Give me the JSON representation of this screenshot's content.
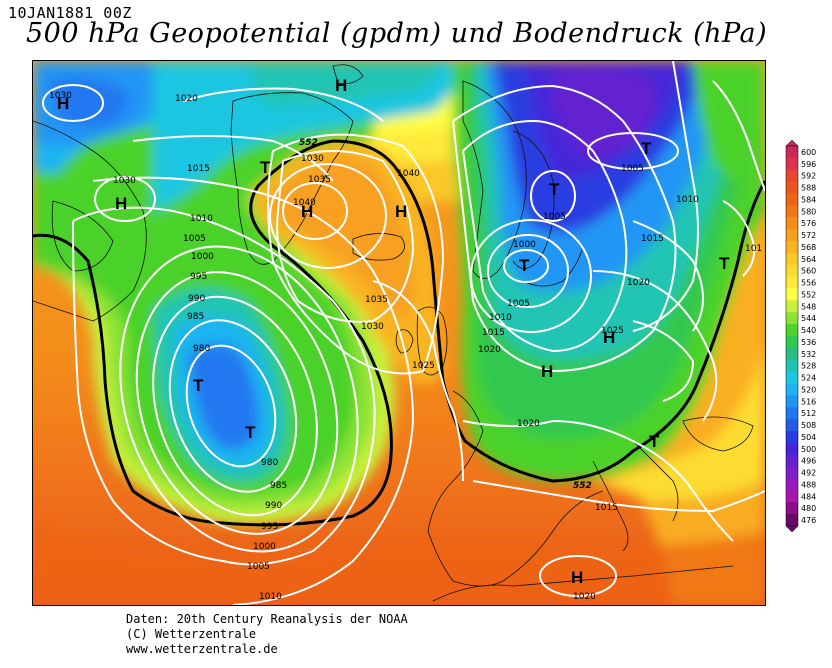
{
  "header": {
    "date": "10JAN1881 00Z",
    "title": "500 hPa Geopotential (gpdm) und Bodendruck (hPa)"
  },
  "legend": {
    "values": [
      "600",
      "596",
      "592",
      "588",
      "584",
      "580",
      "576",
      "572",
      "568",
      "564",
      "560",
      "556",
      "552",
      "548",
      "544",
      "540",
      "536",
      "532",
      "528",
      "524",
      "520",
      "516",
      "512",
      "508",
      "504",
      "500",
      "496",
      "492",
      "488",
      "484",
      "480",
      "476"
    ],
    "colors": [
      "#c8285a",
      "#dc3250",
      "#e64632",
      "#ea5522",
      "#ee6414",
      "#f07816",
      "#f48c1a",
      "#f7a020",
      "#f9b424",
      "#fbc82a",
      "#fddc30",
      "#ffe93a",
      "#ffff44",
      "#c8f03c",
      "#8ce234",
      "#4cd22c",
      "#30c850",
      "#28be82",
      "#20c4b4",
      "#1ec6e0",
      "#1eb4f2",
      "#2096f4",
      "#2278f0",
      "#285ae8",
      "#2a3ce0",
      "#4426d8",
      "#6422d0",
      "#7e1ec8",
      "#961abc",
      "#a818ac",
      "#8a1084",
      "#6a0a68"
    ]
  },
  "map": {
    "pressure_centers": [
      {
        "label": "H"
      },
      {
        "label": "H"
      },
      {
        "label": "T"
      },
      {
        "label": "H"
      },
      {
        "label": "H"
      },
      {
        "label": "H"
      },
      {
        "label": "T"
      },
      {
        "label": "T"
      },
      {
        "label": "T"
      },
      {
        "label": "T"
      },
      {
        "label": "T"
      },
      {
        "label": "H"
      },
      {
        "label": "H"
      },
      {
        "label": "T"
      },
      {
        "label": "T"
      },
      {
        "label": "H"
      }
    ],
    "isobar_labels": [
      {
        "text": "1030"
      },
      {
        "text": "1020"
      },
      {
        "text": "1015"
      },
      {
        "text": "1030"
      },
      {
        "text": "1010"
      },
      {
        "text": "1005"
      },
      {
        "text": "1000"
      },
      {
        "text": "995"
      },
      {
        "text": "990"
      },
      {
        "text": "985"
      },
      {
        "text": "980"
      },
      {
        "text": "980"
      },
      {
        "text": "985"
      },
      {
        "text": "990"
      },
      {
        "text": "995"
      },
      {
        "text": "1000"
      },
      {
        "text": "1005"
      },
      {
        "text": "1010"
      },
      {
        "text": "1030"
      },
      {
        "text": "1035"
      },
      {
        "text": "1040"
      },
      {
        "text": "1040"
      },
      {
        "text": "1035"
      },
      {
        "text": "1030"
      },
      {
        "text": "1025"
      },
      {
        "text": "1005"
      },
      {
        "text": "1000"
      },
      {
        "text": "1005"
      },
      {
        "text": "1010"
      },
      {
        "text": "1015"
      },
      {
        "text": "1020"
      },
      {
        "text": "1005"
      },
      {
        "text": "1010"
      },
      {
        "text": "1015"
      },
      {
        "text": "1020"
      },
      {
        "text": "1025"
      },
      {
        "text": "1020"
      },
      {
        "text": "1015"
      },
      {
        "text": "1020"
      },
      {
        "text": "101"
      }
    ],
    "contour_labels": [
      {
        "text": "552"
      },
      {
        "text": "552"
      }
    ]
  },
  "footer": {
    "line1": "Daten: 20th Century Reanalysis der NOAA",
    "line2": "(C) Wetterzentrale",
    "line3": "www.wetterzentrale.de"
  }
}
